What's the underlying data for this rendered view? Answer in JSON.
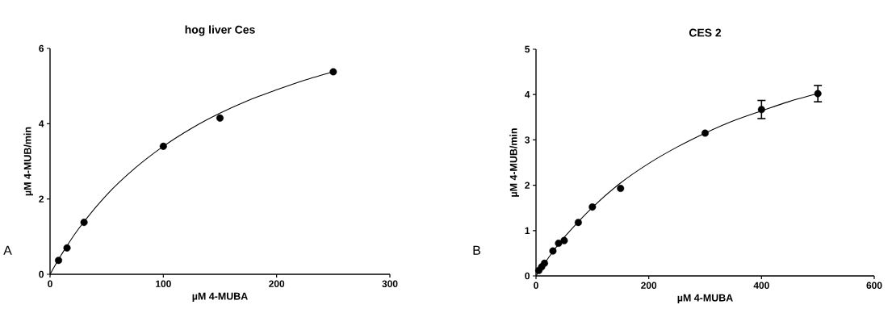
{
  "chart_data": [
    {
      "type": "scatter",
      "title": "hog liver Ces",
      "xlabel": "µM 4-MUBA",
      "ylabel": "µM 4-MUB/min",
      "annotations": [
        "A"
      ],
      "xlim": [
        0,
        300
      ],
      "ylim": [
        0,
        6
      ],
      "xticks": [
        0,
        100,
        200,
        300
      ],
      "yticks": [
        0,
        2,
        4,
        6
      ],
      "marker": "circle",
      "series": [
        {
          "type": "scatter",
          "color": "#000000",
          "x": [
            7.5,
            15,
            30,
            100,
            150,
            250
          ],
          "values": [
            0.37,
            0.7,
            1.38,
            3.4,
            4.15,
            5.38
          ]
        },
        {
          "type": "line",
          "color": "#000000",
          "marker": "none",
          "x": [
            0,
            10,
            25,
            50,
            75,
            100,
            125,
            150,
            175,
            200,
            225,
            250
          ],
          "values": [
            0,
            0.52,
            1.2,
            2.11,
            2.82,
            3.4,
            3.88,
            4.28,
            4.62,
            4.9,
            5.16,
            5.38
          ]
        }
      ]
    },
    {
      "type": "scatter",
      "title": "CES 2",
      "xlabel": "µM 4-MUBA",
      "ylabel": "µM 4-MUB/min",
      "annotations": [
        "B"
      ],
      "xlim": [
        0,
        600
      ],
      "ylim": [
        0,
        5
      ],
      "xticks": [
        0,
        200,
        400,
        600
      ],
      "yticks": [
        0,
        1,
        2,
        3,
        4,
        5
      ],
      "marker": "circle",
      "series": [
        {
          "type": "scatter",
          "color": "#000000",
          "x": [
            5,
            10,
            15,
            30,
            40,
            50,
            75,
            100,
            150,
            300,
            400,
            500
          ],
          "values": [
            0.12,
            0.2,
            0.28,
            0.55,
            0.72,
            0.78,
            1.18,
            1.52,
            1.93,
            3.15,
            3.67,
            4.02
          ],
          "errors": [
            null,
            null,
            null,
            null,
            null,
            null,
            null,
            null,
            null,
            null,
            0.2,
            0.18
          ]
        },
        {
          "type": "line",
          "color": "#000000",
          "marker": "none",
          "x": [
            0,
            25,
            50,
            100,
            150,
            200,
            250,
            300,
            350,
            400,
            450,
            500
          ],
          "values": [
            0,
            0.45,
            0.85,
            1.51,
            2.05,
            2.48,
            2.84,
            3.15,
            3.42,
            3.64,
            3.85,
            4.02
          ]
        }
      ]
    }
  ]
}
